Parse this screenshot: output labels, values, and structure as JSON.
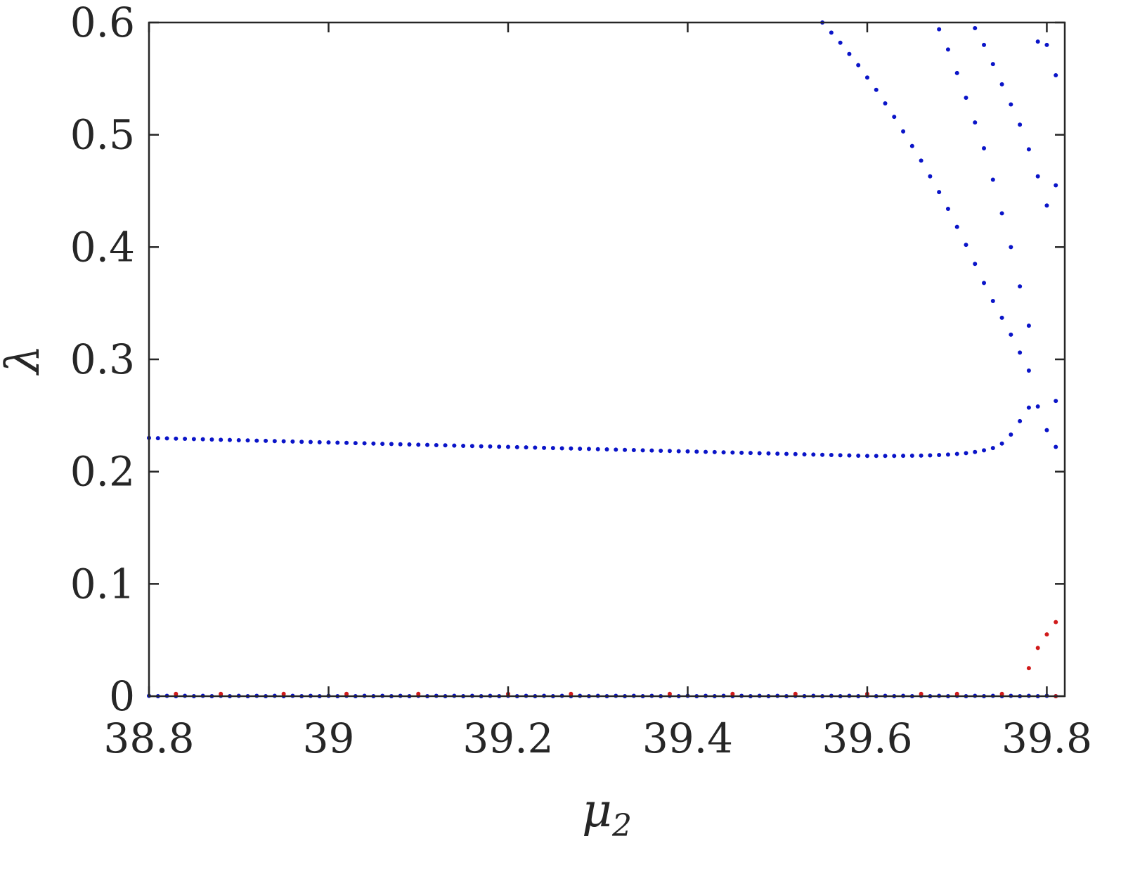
{
  "chart_data": {
    "type": "scatter",
    "title": "",
    "xlabel": "μ",
    "xlabel_subscript": "2",
    "ylabel": "λ",
    "xlim": [
      38.8,
      39.82
    ],
    "ylim": [
      0,
      0.6
    ],
    "grid": false,
    "xticks": [
      38.8,
      39,
      39.2,
      39.4,
      39.6,
      39.8
    ],
    "xtick_labels": [
      "38.8",
      "39",
      "39.2",
      "39.4",
      "39.6",
      "39.8"
    ],
    "yticks": [
      0,
      0.1,
      0.2,
      0.3,
      0.4,
      0.5,
      0.6
    ],
    "ytick_labels": [
      "0",
      "0.1",
      "0.2",
      "0.3",
      "0.4",
      "0.5",
      "0.6"
    ],
    "colors": {
      "blue": "#0a14c8",
      "red": "#d01a1a",
      "axis": "#262626"
    },
    "series": [
      {
        "color": "blue",
        "x": [
          38.8,
          38.81,
          38.82,
          38.83,
          38.84,
          38.85,
          38.86,
          38.87,
          38.88,
          38.89,
          38.9,
          38.91,
          38.92,
          38.93,
          38.94,
          38.95,
          38.96,
          38.97,
          38.98,
          38.99,
          39.0,
          39.01,
          39.02,
          39.03,
          39.04,
          39.05,
          39.06,
          39.07,
          39.08,
          39.09,
          39.1,
          39.11,
          39.12,
          39.13,
          39.14,
          39.15,
          39.16,
          39.17,
          39.18,
          39.19,
          39.2,
          39.21,
          39.22,
          39.23,
          39.24,
          39.25,
          39.26,
          39.27,
          39.28,
          39.29,
          39.3,
          39.31,
          39.32,
          39.33,
          39.34,
          39.35,
          39.36,
          39.37,
          39.38,
          39.39,
          39.4,
          39.41,
          39.42,
          39.43,
          39.44,
          39.45,
          39.46,
          39.47,
          39.48,
          39.49,
          39.5,
          39.51,
          39.52,
          39.53,
          39.54,
          39.55,
          39.56,
          39.57,
          39.58,
          39.59,
          39.6,
          39.61,
          39.62,
          39.63,
          39.64,
          39.65,
          39.66,
          39.67,
          39.68,
          39.69,
          39.7,
          39.71,
          39.72,
          39.73,
          39.74,
          39.75,
          39.76,
          39.77,
          39.78
        ],
        "y": [
          0.23,
          0.2298,
          0.2296,
          0.2294,
          0.2292,
          0.229,
          0.2288,
          0.2286,
          0.2284,
          0.2282,
          0.228,
          0.2278,
          0.2276,
          0.2274,
          0.2272,
          0.227,
          0.2268,
          0.2266,
          0.2264,
          0.2262,
          0.226,
          0.2258,
          0.2256,
          0.2254,
          0.2252,
          0.225,
          0.2248,
          0.2246,
          0.2244,
          0.2242,
          0.224,
          0.2238,
          0.2236,
          0.2234,
          0.2232,
          0.223,
          0.2228,
          0.2226,
          0.2224,
          0.2222,
          0.222,
          0.2218,
          0.2216,
          0.2214,
          0.2212,
          0.221,
          0.2208,
          0.2206,
          0.2204,
          0.2202,
          0.22,
          0.2198,
          0.2196,
          0.2194,
          0.2192,
          0.219,
          0.2188,
          0.2186,
          0.2184,
          0.2182,
          0.218,
          0.2178,
          0.2176,
          0.2174,
          0.2172,
          0.217,
          0.2168,
          0.2166,
          0.2164,
          0.2162,
          0.216,
          0.2158,
          0.2156,
          0.2154,
          0.2152,
          0.215,
          0.2148,
          0.2146,
          0.2144,
          0.2142,
          0.214,
          0.214,
          0.214,
          0.214,
          0.2141,
          0.2142,
          0.2143,
          0.2145,
          0.2148,
          0.2152,
          0.2158,
          0.2165,
          0.2175,
          0.219,
          0.221,
          0.225,
          0.233,
          0.245,
          0.257
        ]
      },
      {
        "color": "blue",
        "x": [
          39.55,
          39.56,
          39.57,
          39.58,
          39.59,
          39.6,
          39.61,
          39.62,
          39.63,
          39.64,
          39.65,
          39.66,
          39.67,
          39.68,
          39.69,
          39.7,
          39.71,
          39.72,
          39.73,
          39.74,
          39.75,
          39.76,
          39.77,
          39.78,
          39.79,
          39.8
        ],
        "y": [
          0.6,
          0.591,
          0.582,
          0.572,
          0.562,
          0.551,
          0.54,
          0.528,
          0.516,
          0.503,
          0.49,
          0.477,
          0.463,
          0.449,
          0.434,
          0.418,
          0.402,
          0.385,
          0.368,
          0.352,
          0.337,
          0.322,
          0.306,
          0.29,
          0.258,
          0.237
        ]
      },
      {
        "color": "blue",
        "x": [
          39.68,
          39.69,
          39.7,
          39.71,
          39.72,
          39.73,
          39.74,
          39.75,
          39.76,
          39.77,
          39.78
        ],
        "y": [
          0.594,
          0.576,
          0.555,
          0.533,
          0.511,
          0.488,
          0.46,
          0.43,
          0.4,
          0.365,
          0.33
        ]
      },
      {
        "color": "blue",
        "x": [
          39.72,
          39.73,
          39.74,
          39.75,
          39.76,
          39.77,
          39.78,
          39.79,
          39.8
        ],
        "y": [
          0.595,
          0.58,
          0.563,
          0.545,
          0.527,
          0.509,
          0.487,
          0.463,
          0.437
        ]
      },
      {
        "color": "blue",
        "x": [
          39.79,
          39.8,
          39.81,
          39.81,
          39.81,
          39.81
        ],
        "y": [
          0.583,
          0.58,
          0.553,
          0.455,
          0.263,
          0.222
        ]
      },
      {
        "color": "blue",
        "x": [
          38.8,
          38.81,
          38.82,
          38.83,
          38.84,
          38.85,
          38.86,
          38.87,
          38.88,
          38.89,
          38.9,
          38.91,
          38.92,
          38.93,
          38.94,
          38.95,
          38.96,
          38.97,
          38.98,
          38.99,
          39.0,
          39.01,
          39.02,
          39.03,
          39.04,
          39.05,
          39.06,
          39.07,
          39.08,
          39.09,
          39.1,
          39.11,
          39.12,
          39.13,
          39.14,
          39.15,
          39.16,
          39.17,
          39.18,
          39.19,
          39.2,
          39.21,
          39.22,
          39.23,
          39.24,
          39.25,
          39.26,
          39.27,
          39.28,
          39.29,
          39.3,
          39.31,
          39.32,
          39.33,
          39.34,
          39.35,
          39.36,
          39.37,
          39.38,
          39.39,
          39.4,
          39.41,
          39.42,
          39.43,
          39.44,
          39.45,
          39.46,
          39.47,
          39.48,
          39.49,
          39.5,
          39.51,
          39.52,
          39.53,
          39.54,
          39.55,
          39.56,
          39.57,
          39.58,
          39.59,
          39.6,
          39.61,
          39.62,
          39.63,
          39.64,
          39.65,
          39.66,
          39.67,
          39.68,
          39.69,
          39.7,
          39.71,
          39.72,
          39.73,
          39.74,
          39.75,
          39.76,
          39.77,
          39.78,
          39.79,
          39.8,
          39.81
        ],
        "y": [
          0.0003,
          0.0,
          0.0003,
          0.0,
          0.0003,
          0.0,
          0.0003,
          0.0,
          0.0003,
          0.0,
          0.0003,
          0.0,
          0.0003,
          0.0,
          0.0003,
          0.0,
          0.0003,
          0.0,
          0.0003,
          0.0,
          0.0003,
          0.0,
          0.0003,
          0.0,
          0.0003,
          0.0,
          0.0003,
          0.0,
          0.0003,
          0.0,
          0.0003,
          0.0,
          0.0003,
          0.0,
          0.0003,
          0.0,
          0.0003,
          0.0,
          0.0003,
          0.0,
          0.0003,
          0.0,
          0.0003,
          0.0,
          0.0003,
          0.0,
          0.0003,
          0.0,
          0.0003,
          0.0,
          0.0003,
          0.0,
          0.0003,
          0.0,
          0.0003,
          0.0,
          0.0003,
          0.0,
          0.0003,
          0.0,
          0.0003,
          0.0,
          0.0003,
          0.0,
          0.0003,
          0.0,
          0.0003,
          0.0,
          0.0003,
          0.0,
          0.0003,
          0.0,
          0.0003,
          0.0,
          0.0003,
          0.0,
          0.0003,
          0.0,
          0.0003,
          0.0,
          0.0003,
          0.0,
          0.0003,
          0.0,
          0.0003,
          0.0,
          0.0003,
          0.0,
          0.0003,
          0.0,
          0.0003,
          0.0,
          0.0003,
          0.0,
          0.0003,
          0.0,
          0.0003,
          0.0,
          0.0003,
          0.0,
          0.0003,
          0.0
        ]
      },
      {
        "color": "red",
        "x": [
          38.83,
          38.88,
          38.95,
          39.02,
          39.1,
          39.2,
          39.27,
          39.38,
          39.45,
          39.52,
          39.6,
          39.66,
          39.7,
          39.75,
          39.81
        ],
        "y": [
          0.002,
          0.002,
          0.002,
          0.002,
          0.002,
          0.002,
          0.002,
          0.002,
          0.002,
          0.002,
          0.002,
          0.002,
          0.002,
          0.002,
          0.0
        ]
      },
      {
        "color": "red",
        "x": [
          39.78,
          39.79,
          39.8,
          39.81
        ],
        "y": [
          0.025,
          0.043,
          0.055,
          0.066
        ]
      }
    ]
  }
}
